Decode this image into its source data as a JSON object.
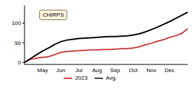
{
  "chart_data": {
    "type": "line",
    "annotation": "CHIRPS",
    "categories": [
      null,
      null,
      null,
      "May",
      null,
      null,
      "Jun",
      null,
      null,
      "Jul",
      null,
      null,
      "Aug",
      null,
      null,
      "Sep",
      null,
      null,
      "Oct",
      null,
      null,
      "Nov",
      null,
      null,
      "Dec",
      null,
      null,
      null
    ],
    "series": [
      {
        "name": "2023",
        "color": "#ff0000",
        "values": [
          0,
          8,
          11,
          13,
          15,
          20,
          26,
          28,
          29,
          30,
          31,
          32,
          32,
          33,
          33,
          34,
          35,
          35,
          37,
          40,
          45,
          49,
          54,
          58,
          64,
          68,
          74,
          86
        ]
      },
      {
        "name": "Avg.",
        "color": "#000000",
        "values": [
          0,
          10,
          20,
          29,
          37,
          46,
          53,
          57,
          59,
          61,
          62,
          63,
          64,
          65,
          66,
          66,
          67,
          68,
          70,
          73,
          78,
          84,
          90,
          97,
          104,
          112,
          120,
          128
        ]
      }
    ],
    "ylim": [
      -5,
      145
    ],
    "yticks": [
      0,
      50,
      100
    ],
    "grid": false,
    "legend": "bottom"
  }
}
